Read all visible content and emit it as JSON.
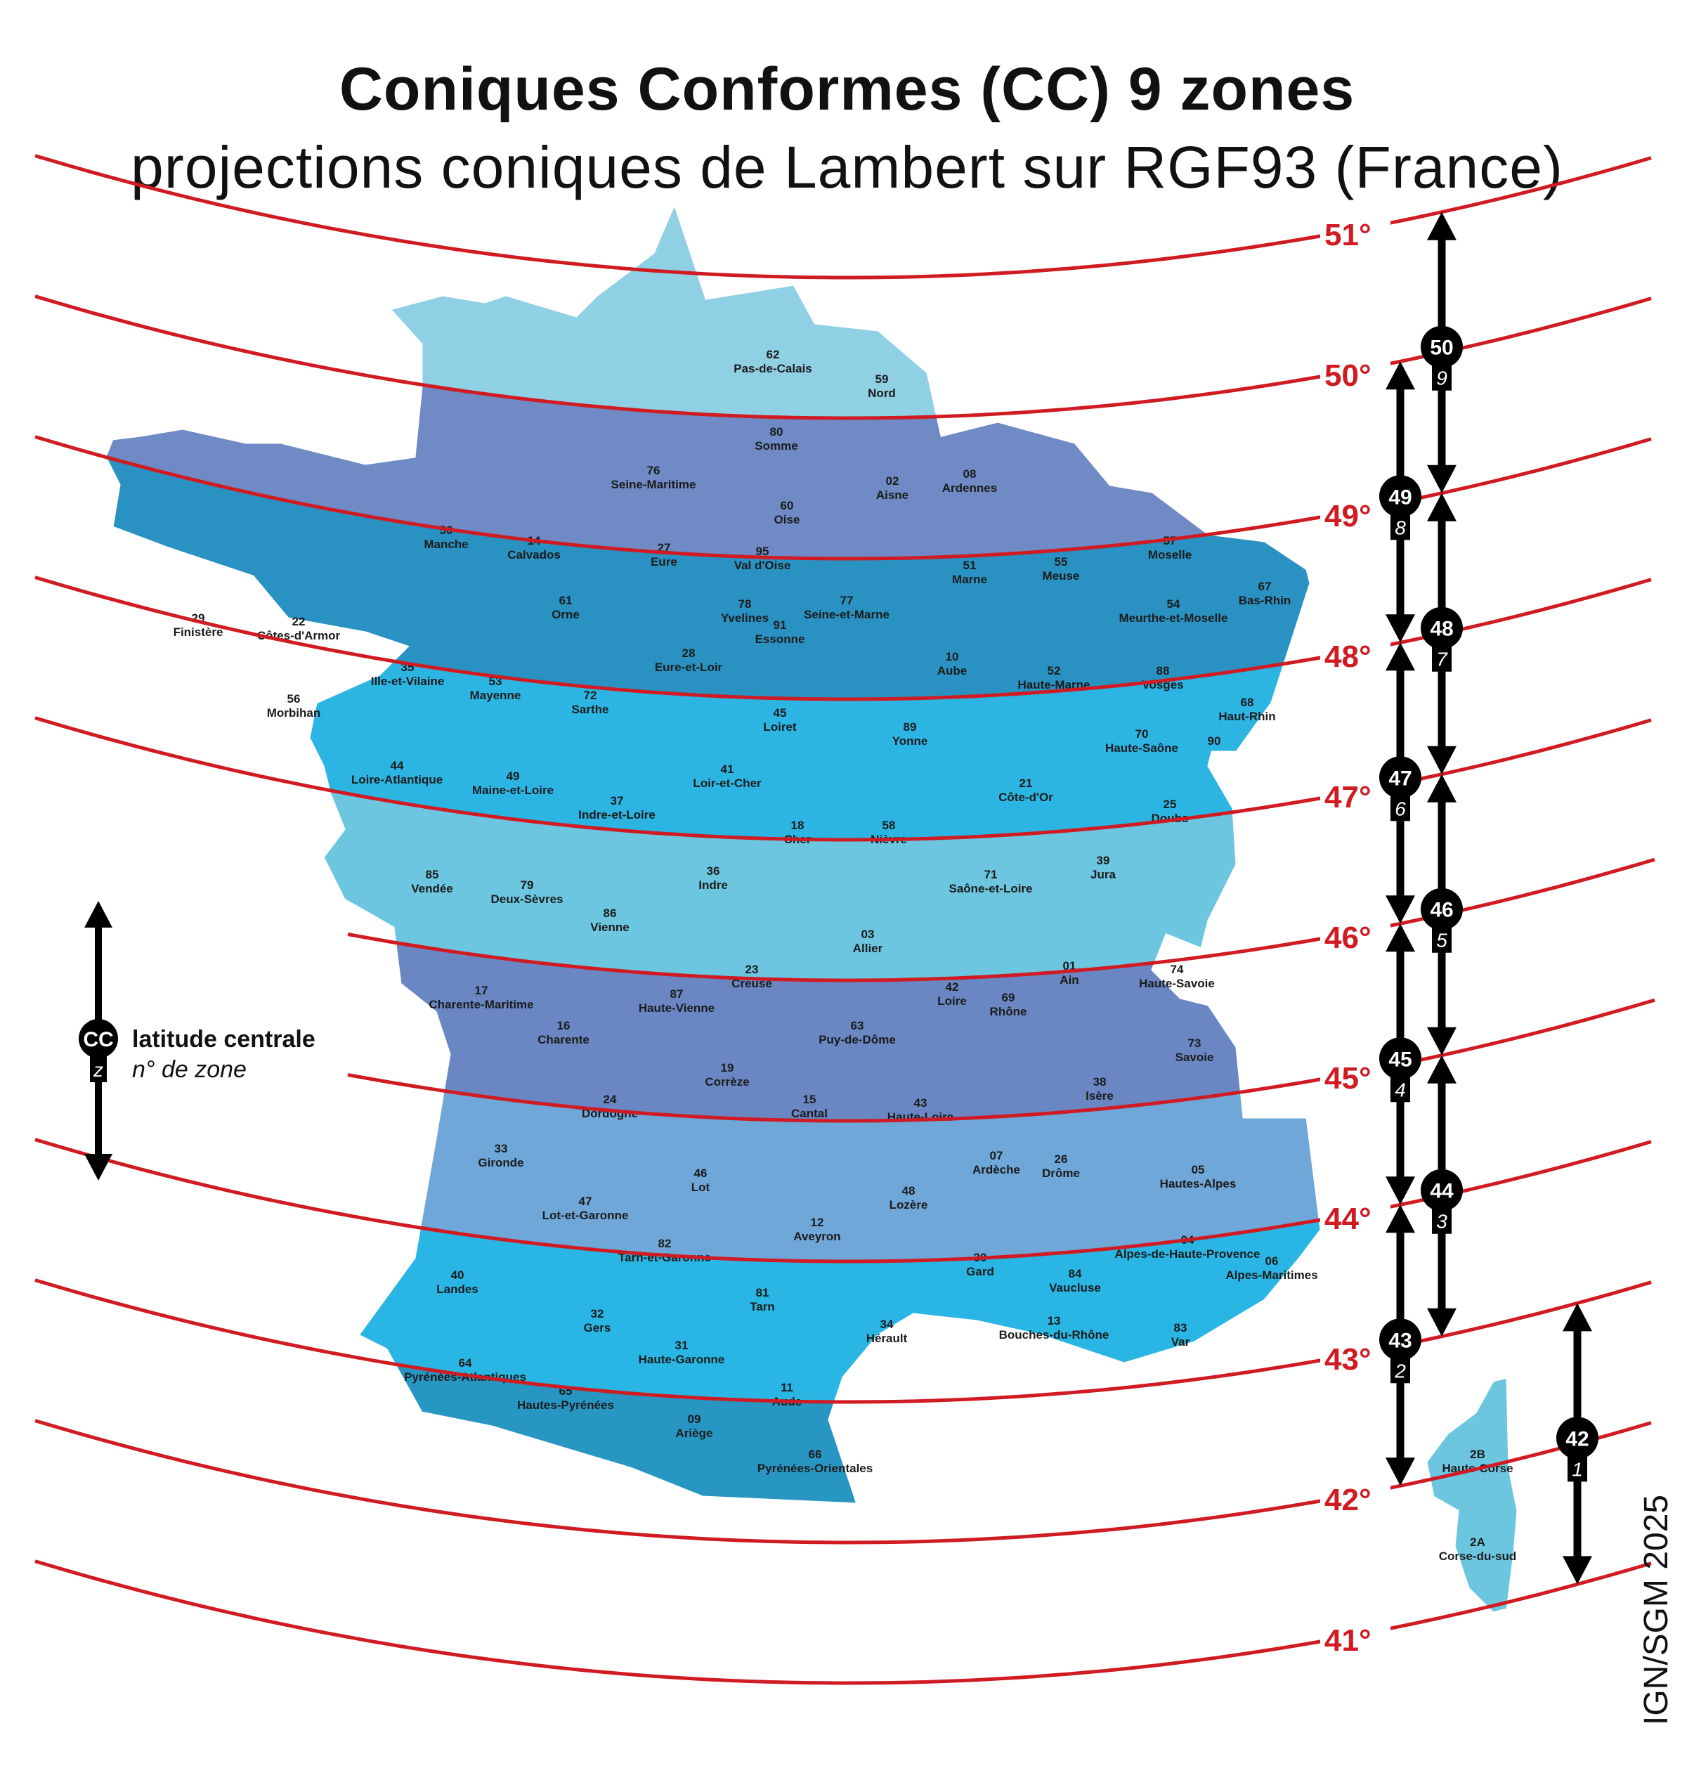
{
  "title": "Coniques Conformes (CC) 9 zones",
  "subtitle": "projections coniques de Lambert sur RGF93 (France)",
  "credit": "IGN/SGM 2025",
  "colors": {
    "parallel": "#d01b22",
    "zone_marker": "#000000",
    "band_51_50": "#8fd0e4",
    "band_50_49": "#6f8ac4",
    "band_49_48": "#2a92c2",
    "band_48_47": "#2cb5e3",
    "band_47_46": "#6cc6e0",
    "band_46_45": "#6a87c3",
    "band_45_44": "#6fa7d9",
    "band_44_43": "#2ab6e4",
    "band_43_42": "#2896c3",
    "corse": "#6cc6e0"
  },
  "legend": {
    "marker_top": "CC",
    "marker_bottom": "z",
    "central_latitude_label": "latitude centrale",
    "zone_number_label": "n° de zone"
  },
  "parallels": [
    {
      "label": "51°",
      "latitude": 51
    },
    {
      "label": "50°",
      "latitude": 50
    },
    {
      "label": "49°",
      "latitude": 49
    },
    {
      "label": "48°",
      "latitude": 48
    },
    {
      "label": "47°",
      "latitude": 47
    },
    {
      "label": "46°",
      "latitude": 46
    },
    {
      "label": "45°",
      "latitude": 45
    },
    {
      "label": "44°",
      "latitude": 44
    },
    {
      "label": "43°",
      "latitude": 43
    },
    {
      "label": "42°",
      "latitude": 42
    },
    {
      "label": "41°",
      "latitude": 41
    }
  ],
  "zones": [
    {
      "code": "50",
      "zone": "9",
      "lat_min": 49,
      "lat_max": 51
    },
    {
      "code": "49",
      "zone": "8",
      "lat_min": 48,
      "lat_max": 50
    },
    {
      "code": "48",
      "zone": "7",
      "lat_min": 47,
      "lat_max": 49
    },
    {
      "code": "47",
      "zone": "6",
      "lat_min": 46,
      "lat_max": 48
    },
    {
      "code": "46",
      "zone": "5",
      "lat_min": 45,
      "lat_max": 47
    },
    {
      "code": "45",
      "zone": "4",
      "lat_min": 44,
      "lat_max": 46
    },
    {
      "code": "44",
      "zone": "3",
      "lat_min": 43,
      "lat_max": 45
    },
    {
      "code": "43",
      "zone": "2",
      "lat_min": 42,
      "lat_max": 44
    },
    {
      "code": "42",
      "zone": "1",
      "lat_min": 41,
      "lat_max": 43
    }
  ],
  "departments": [
    {
      "num": "62",
      "name": "Pas-de-Calais"
    },
    {
      "num": "59",
      "name": "Nord"
    },
    {
      "num": "80",
      "name": "Somme"
    },
    {
      "num": "76",
      "name": "Seine-Maritime"
    },
    {
      "num": "02",
      "name": "Aisne"
    },
    {
      "num": "08",
      "name": "Ardennes"
    },
    {
      "num": "60",
      "name": "Oise"
    },
    {
      "num": "50",
      "name": "Manche"
    },
    {
      "num": "14",
      "name": "Calvados"
    },
    {
      "num": "27",
      "name": "Eure"
    },
    {
      "num": "95",
      "name": "Val d'Oise"
    },
    {
      "num": "57",
      "name": "Moselle"
    },
    {
      "num": "51",
      "name": "Marne"
    },
    {
      "num": "55",
      "name": "Meuse"
    },
    {
      "num": "67",
      "name": "Bas-Rhin"
    },
    {
      "num": "61",
      "name": "Orne"
    },
    {
      "num": "78",
      "name": "Yvelines"
    },
    {
      "num": "77",
      "name": "Seine-et-Marne"
    },
    {
      "num": "91",
      "name": "Essonne"
    },
    {
      "num": "54",
      "name": "Meurthe-et-Moselle"
    },
    {
      "num": "29",
      "name": "Finistère"
    },
    {
      "num": "22",
      "name": "Côtes-d'Armor"
    },
    {
      "num": "28",
      "name": "Eure-et-Loir"
    },
    {
      "num": "10",
      "name": "Aube"
    },
    {
      "num": "35",
      "name": "Ille-et-Vilaine"
    },
    {
      "num": "53",
      "name": "Mayenne"
    },
    {
      "num": "72",
      "name": "Sarthe"
    },
    {
      "num": "52",
      "name": "Haute-Marne"
    },
    {
      "num": "88",
      "name": "Vosges"
    },
    {
      "num": "56",
      "name": "Morbihan"
    },
    {
      "num": "45",
      "name": "Loiret"
    },
    {
      "num": "68",
      "name": "Haut-Rhin"
    },
    {
      "num": "89",
      "name": "Yonne"
    },
    {
      "num": "70",
      "name": "Haute-Saône"
    },
    {
      "num": "90",
      "name": ""
    },
    {
      "num": "44",
      "name": "Loire-Atlantique"
    },
    {
      "num": "49",
      "name": "Maine-et-Loire"
    },
    {
      "num": "41",
      "name": "Loir-et-Cher"
    },
    {
      "num": "21",
      "name": "Côte-d'Or"
    },
    {
      "num": "37",
      "name": "Indre-et-Loire"
    },
    {
      "num": "25",
      "name": "Doubs"
    },
    {
      "num": "18",
      "name": "Cher"
    },
    {
      "num": "58",
      "name": "Nièvre"
    },
    {
      "num": "85",
      "name": "Vendée"
    },
    {
      "num": "79",
      "name": "Deux-Sèvres"
    },
    {
      "num": "36",
      "name": "Indre"
    },
    {
      "num": "39",
      "name": "Jura"
    },
    {
      "num": "71",
      "name": "Saône-et-Loire"
    },
    {
      "num": "86",
      "name": "Vienne"
    },
    {
      "num": "03",
      "name": "Allier"
    },
    {
      "num": "01",
      "name": "Ain"
    },
    {
      "num": "74",
      "name": "Haute-Savoie"
    },
    {
      "num": "23",
      "name": "Creuse"
    },
    {
      "num": "42",
      "name": "Loire"
    },
    {
      "num": "17",
      "name": "Charente-Maritime"
    },
    {
      "num": "87",
      "name": "Haute-Vienne"
    },
    {
      "num": "69",
      "name": "Rhône"
    },
    {
      "num": "16",
      "name": "Charente"
    },
    {
      "num": "63",
      "name": "Puy-de-Dôme"
    },
    {
      "num": "73",
      "name": "Savoie"
    },
    {
      "num": "19",
      "name": "Corrèze"
    },
    {
      "num": "38",
      "name": "Isère"
    },
    {
      "num": "24",
      "name": "Dordogne"
    },
    {
      "num": "15",
      "name": "Cantal"
    },
    {
      "num": "43",
      "name": "Haute-Loire"
    },
    {
      "num": "33",
      "name": "Gironde"
    },
    {
      "num": "07",
      "name": "Ardèche"
    },
    {
      "num": "26",
      "name": "Drôme"
    },
    {
      "num": "05",
      "name": "Hautes-Alpes"
    },
    {
      "num": "46",
      "name": "Lot"
    },
    {
      "num": "48",
      "name": "Lozère"
    },
    {
      "num": "47",
      "name": "Lot-et-Garonne"
    },
    {
      "num": "12",
      "name": "Aveyron"
    },
    {
      "num": "04",
      "name": "Alpes-de-Haute-Provence"
    },
    {
      "num": "82",
      "name": "Tarn-et-Garonne"
    },
    {
      "num": "06",
      "name": "Alpes-Maritimes"
    },
    {
      "num": "40",
      "name": "Landes"
    },
    {
      "num": "30",
      "name": "Gard"
    },
    {
      "num": "84",
      "name": "Vaucluse"
    },
    {
      "num": "81",
      "name": "Tarn"
    },
    {
      "num": "32",
      "name": "Gers"
    },
    {
      "num": "13",
      "name": "Bouches-du-Rhône"
    },
    {
      "num": "34",
      "name": "Hérault"
    },
    {
      "num": "83",
      "name": "Var"
    },
    {
      "num": "31",
      "name": "Haute-Garonne"
    },
    {
      "num": "64",
      "name": "Pyrénées-Atlantiques"
    },
    {
      "num": "65",
      "name": "Hautes-Pyrénées"
    },
    {
      "num": "11",
      "name": "Aude"
    },
    {
      "num": "09",
      "name": "Ariège"
    },
    {
      "num": "66",
      "name": "Pyrénées-Orientales"
    },
    {
      "num": "2B",
      "name": "Haute-Corse"
    },
    {
      "num": "2A",
      "name": "Corse-du-sud"
    }
  ]
}
